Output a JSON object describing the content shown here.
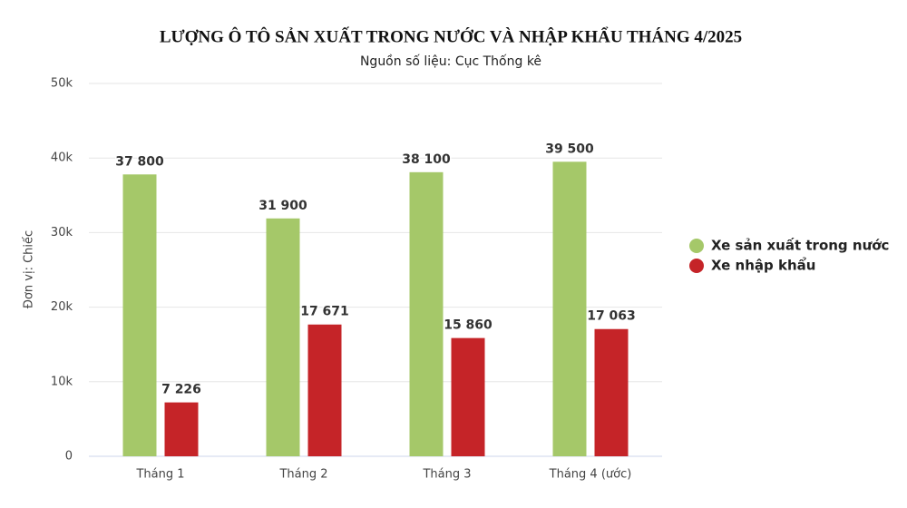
{
  "chart_data": {
    "type": "bar",
    "title": "LƯỢNG Ô TÔ SẢN XUẤT TRONG NƯỚC VÀ NHẬP KHẨU THÁNG 4/2025",
    "subtitle": "Nguồn số liệu: Cục Thống kê",
    "y_label": "Đơn vị: Chiếc",
    "categories": [
      "Tháng 1",
      "Tháng 2",
      "Tháng 3",
      "Tháng 4 (ước)"
    ],
    "series": [
      {
        "name": "Xe sản xuất trong nước",
        "color": "#a5c869",
        "values": [
          37800,
          31900,
          38100,
          39500
        ],
        "value_labels": [
          "37 800",
          "31 900",
          "38 100",
          "39 500"
        ]
      },
      {
        "name": "Xe nhập khẩu",
        "color": "#c52428",
        "values": [
          7226,
          17671,
          15860,
          17063
        ],
        "value_labels": [
          "7 226",
          "17 671",
          "15 860",
          "17 063"
        ]
      }
    ],
    "ylim": [
      0,
      50000
    ],
    "yticks": [
      0,
      {
        "value": 10000,
        "label": "10k"
      },
      {
        "value": 20000,
        "label": "20k"
      },
      {
        "value": 30000,
        "label": "30k"
      },
      {
        "value": 40000,
        "label": "40k"
      },
      {
        "value": 50000,
        "label": "50k"
      }
    ],
    "grid": true,
    "legend_position": "right"
  }
}
